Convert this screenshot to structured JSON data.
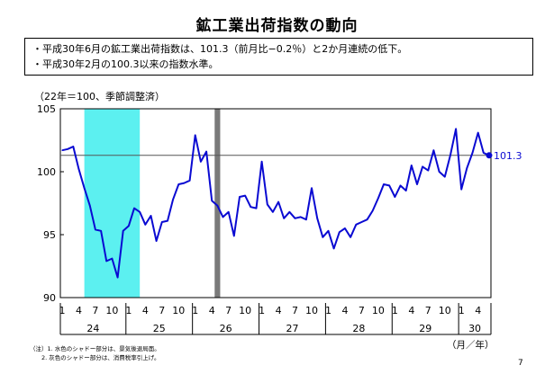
{
  "header": {
    "title": "鉱工業出荷指数の動向",
    "bullets": [
      "・平成30年6月の鉱工業出荷指数は、101.3（前月比−0.2％）と2か月連続の低下。",
      "・平成30年2月の100.3以来の指数水準。"
    ]
  },
  "chart_data": {
    "type": "line",
    "units_label": "（22年＝100、季節調整済）",
    "ylim": [
      90,
      105
    ],
    "y_ticks": [
      "90",
      "95",
      "100",
      "105"
    ],
    "month_tick_labels": [
      "1",
      "4",
      "7",
      "10",
      "1",
      "4",
      "7",
      "10",
      "1",
      "4",
      "7",
      "10",
      "1",
      "4",
      "7",
      "10",
      "1",
      "4",
      "7",
      "10",
      "1",
      "4",
      "7",
      "10",
      "1",
      "4"
    ],
    "year_labels": [
      "24",
      "25",
      "26",
      "27",
      "28",
      "29",
      "30"
    ],
    "x_axis_unit": "（月／年）",
    "reference_value": 101.3,
    "last_value_label": "101.3",
    "line_color": "#0a0ad2",
    "shading": [
      {
        "from": 4,
        "to": 14,
        "color": "#5cf0f0",
        "note": "水色"
      },
      {
        "from": 27.5,
        "to": 28.5,
        "color": "#7a7a7a",
        "note": "灰色"
      }
    ],
    "series": [
      {
        "values": [
          101.7,
          101.8,
          102.0,
          100.2,
          98.7,
          97.3,
          95.4,
          95.3,
          92.9,
          93.1,
          91.6,
          95.3,
          95.7,
          97.1,
          96.8,
          95.8,
          96.5,
          94.5,
          96.0,
          96.1,
          97.8,
          99.0,
          99.1,
          99.3,
          102.9,
          100.8,
          101.6,
          97.7,
          97.3,
          96.4,
          96.8,
          94.9,
          98.0,
          98.1,
          97.2,
          97.1,
          100.8,
          97.4,
          96.8,
          97.6,
          96.3,
          96.8,
          96.3,
          96.4,
          96.2,
          98.7,
          96.3,
          94.8,
          95.3,
          93.9,
          95.2,
          95.5,
          94.8,
          95.8,
          96.0,
          96.2,
          96.9,
          97.9,
          99.0,
          98.9,
          98.0,
          98.9,
          98.5,
          100.5,
          99.0,
          100.4,
          100.1,
          101.7,
          100.0,
          99.6,
          101.3,
          103.4,
          98.6,
          100.3,
          101.5,
          103.1,
          101.5,
          101.3
        ]
      }
    ]
  },
  "notes": [
    "（注）1. 水色のシャドー部分は、景気後退局面。",
    "2. 灰色のシャドー部分は、消費税率引上げ。"
  ],
  "page_number": "7"
}
